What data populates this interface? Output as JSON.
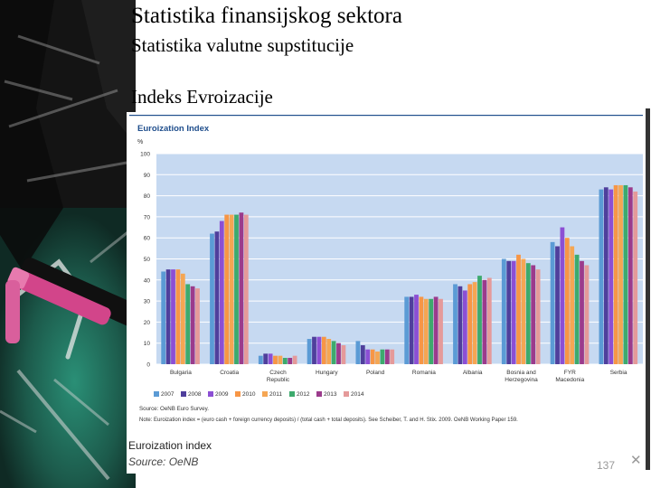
{
  "slide": {
    "title": "Statistika finansijskog sektora",
    "subtitle": "Statistika valutne supstitucije",
    "heading": "Indeks Evroizacije",
    "caption_title": "Euroization index",
    "caption_source": "Source: OeNB",
    "slide_number": "137",
    "close_glyph": "✕"
  },
  "colors": {
    "plot_bg": "#c6d9f1",
    "title_text": "#1f4e8c",
    "series": [
      "#5b9bd5",
      "#4f3f9c",
      "#8c4fd4",
      "#f79646",
      "#f5a653",
      "#3daa6d",
      "#9b3b8c",
      "#e59a9a"
    ]
  },
  "chart_data": {
    "type": "bar",
    "title": "Euroization Index",
    "ylabel": "%",
    "ylim": [
      0,
      100
    ],
    "yticks": [
      0,
      10,
      20,
      30,
      40,
      50,
      60,
      70,
      80,
      90,
      100
    ],
    "categories": [
      "Bulgaria",
      "Croatia",
      "Czech Republic",
      "Hungary",
      "Poland",
      "Romania",
      "Albania",
      "Bosnia and Herzegovina",
      "FYR Macedonia",
      "Serbia"
    ],
    "category_lines": [
      [
        "Bulgaria"
      ],
      [
        "Croatia"
      ],
      [
        "Czech",
        "Republic"
      ],
      [
        "Hungary"
      ],
      [
        "Poland"
      ],
      [
        "Romania"
      ],
      [
        "Albania"
      ],
      [
        "Bosnia and",
        "Herzegovina"
      ],
      [
        "FYR",
        "Macedonia"
      ],
      [
        "Serbia"
      ]
    ],
    "series": [
      {
        "name": "2007",
        "values": [
          44,
          62,
          4,
          12,
          11,
          32,
          38,
          50,
          58,
          83
        ]
      },
      {
        "name": "2008",
        "values": [
          45,
          63,
          5,
          13,
          9,
          32,
          37,
          49,
          56,
          84
        ]
      },
      {
        "name": "2009",
        "values": [
          45,
          68,
          5,
          13,
          7,
          33,
          35,
          49,
          65,
          83
        ]
      },
      {
        "name": "2010",
        "values": [
          45,
          71,
          4,
          13,
          7,
          32,
          38,
          52,
          60,
          85
        ]
      },
      {
        "name": "2011",
        "values": [
          43,
          71,
          4,
          12,
          6,
          31,
          39,
          50,
          56,
          85
        ]
      },
      {
        "name": "2012",
        "values": [
          38,
          71,
          3,
          11,
          7,
          31,
          42,
          48,
          52,
          85
        ]
      },
      {
        "name": "2013",
        "values": [
          37,
          72,
          3,
          10,
          7,
          32,
          40,
          47,
          49,
          84
        ]
      },
      {
        "name": "2014",
        "values": [
          36,
          71,
          4,
          9,
          7,
          31,
          41,
          45,
          47,
          82
        ]
      }
    ],
    "source_note": "Source: OeNB Euro Survey.",
    "note": "Note: Euroization index = (euro cash + foreign currency deposits) / (total cash + total deposits). See Scheiber, T. and H. Stix. 2009. OeNB Working Paper 159."
  }
}
